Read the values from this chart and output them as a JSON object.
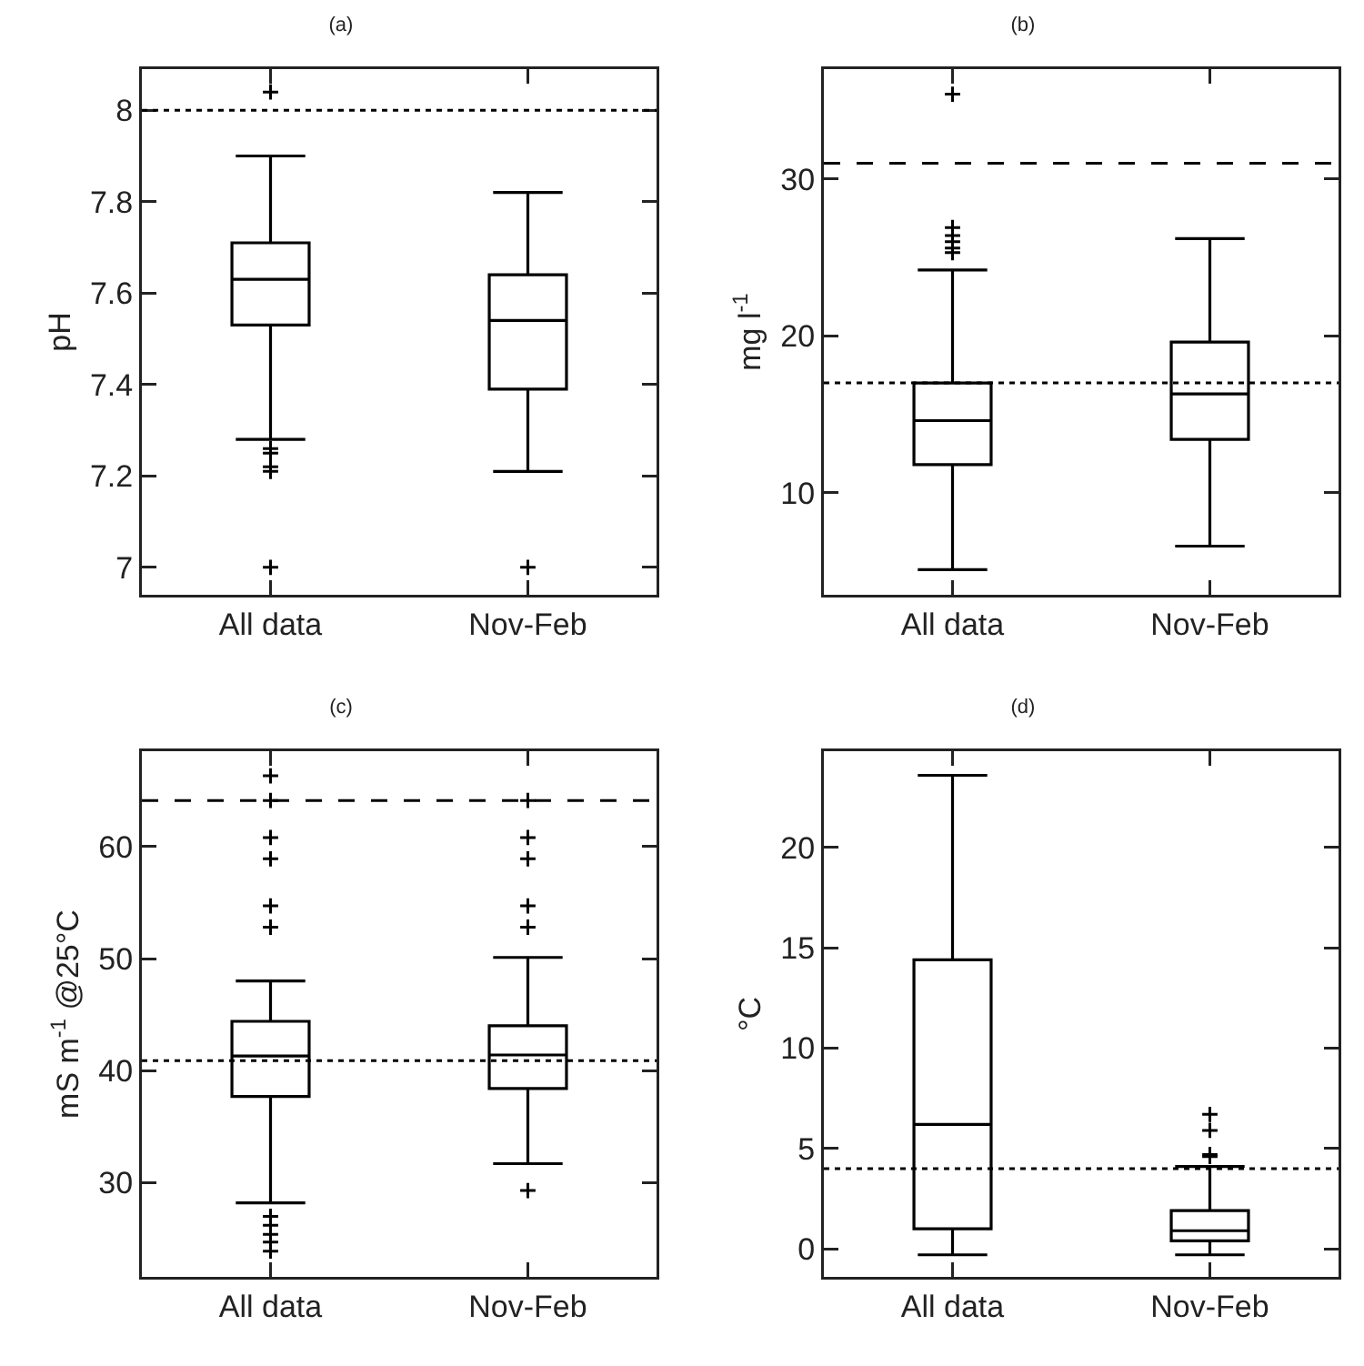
{
  "chart_data": [
    {
      "type": "box",
      "title": "(a)",
      "ylabel": "pH",
      "categories": [
        "All data",
        "Nov-Feb"
      ],
      "marker": "cross",
      "grid": false,
      "boxes": [
        {
          "low": 7.28,
          "q1": 7.53,
          "median": 7.63,
          "q3": 7.71,
          "high": 7.9,
          "outliers": [
            8.04,
            7.26,
            7.25,
            7.22,
            7.21,
            7.0
          ]
        },
        {
          "low": 7.21,
          "q1": 7.39,
          "median": 7.54,
          "q3": 7.64,
          "high": 7.82,
          "outliers": [
            7.0
          ]
        }
      ],
      "ylim": [
        6.94,
        8.09
      ],
      "yticks": [
        7,
        7.2,
        7.4,
        7.6,
        7.8,
        8
      ],
      "ref_lines": [
        {
          "axis": "y",
          "value": 8,
          "line_style": "dotted"
        }
      ]
    },
    {
      "type": "box",
      "title": "(b)",
      "ylabel": "mg l$^{-1}$",
      "categories": [
        "All data",
        "Nov-Feb"
      ],
      "marker": "cross",
      "grid": false,
      "boxes": [
        {
          "low": 5.1,
          "q1": 11.8,
          "median": 14.6,
          "q3": 17.0,
          "high": 24.2,
          "outliers": [
            35.4,
            26.9,
            26.4,
            26.0,
            25.6,
            25.3
          ]
        },
        {
          "low": 6.6,
          "q1": 13.4,
          "median": 16.3,
          "q3": 19.6,
          "high": 26.2
        }
      ],
      "ylim": [
        3.5,
        37
      ],
      "yticks": [
        10,
        20,
        30
      ],
      "ref_lines": [
        {
          "axis": "y",
          "value": 31,
          "line_style": "dashed"
        },
        {
          "axis": "y",
          "value": 17,
          "line_style": "dotted"
        }
      ]
    },
    {
      "type": "box",
      "title": "(c)",
      "ylabel": "mS m$^{-1}$ @25°C",
      "categories": [
        "All data",
        "Nov-Feb"
      ],
      "marker": "cross",
      "grid": false,
      "boxes": [
        {
          "low": 28.2,
          "q1": 37.7,
          "median": 41.3,
          "q3": 44.4,
          "high": 48,
          "outliers": [
            66.3,
            64.1,
            60.8,
            58.9,
            54.7,
            52.8,
            27.0,
            26.2,
            25.4,
            24.7,
            23.9
          ]
        },
        {
          "low": 31.7,
          "q1": 38.4,
          "median": 41.4,
          "q3": 44.0,
          "high": 50.1,
          "outliers": [
            64.1,
            60.8,
            58.9,
            54.7,
            52.8,
            29.3
          ]
        }
      ],
      "ylim": [
        21.6,
        68.5
      ],
      "yticks": [
        30,
        40,
        50,
        60
      ],
      "ref_lines": [
        {
          "axis": "y",
          "value": 64.1,
          "line_style": "dashed"
        },
        {
          "axis": "y",
          "value": 40.9,
          "line_style": "dotted"
        }
      ]
    },
    {
      "type": "box",
      "title": "(d)",
      "ylabel": "°C",
      "categories": [
        "All data",
        "Nov-Feb"
      ],
      "marker": "cross",
      "grid": false,
      "boxes": [
        {
          "low": -0.3,
          "q1": 1.0,
          "median": 6.2,
          "q3": 14.4,
          "high": 23.6
        },
        {
          "low": -0.3,
          "q1": 0.4,
          "median": 0.9,
          "q3": 1.9,
          "high": 4.1,
          "outliers": [
            6.7,
            5.9,
            4.7,
            4.6
          ]
        }
      ],
      "ylim": [
        -1.4,
        24.8
      ],
      "yticks": [
        0,
        5,
        10,
        15,
        20
      ],
      "ref_lines": [
        {
          "axis": "y",
          "value": 4,
          "line_style": "dotted"
        }
      ]
    }
  ]
}
